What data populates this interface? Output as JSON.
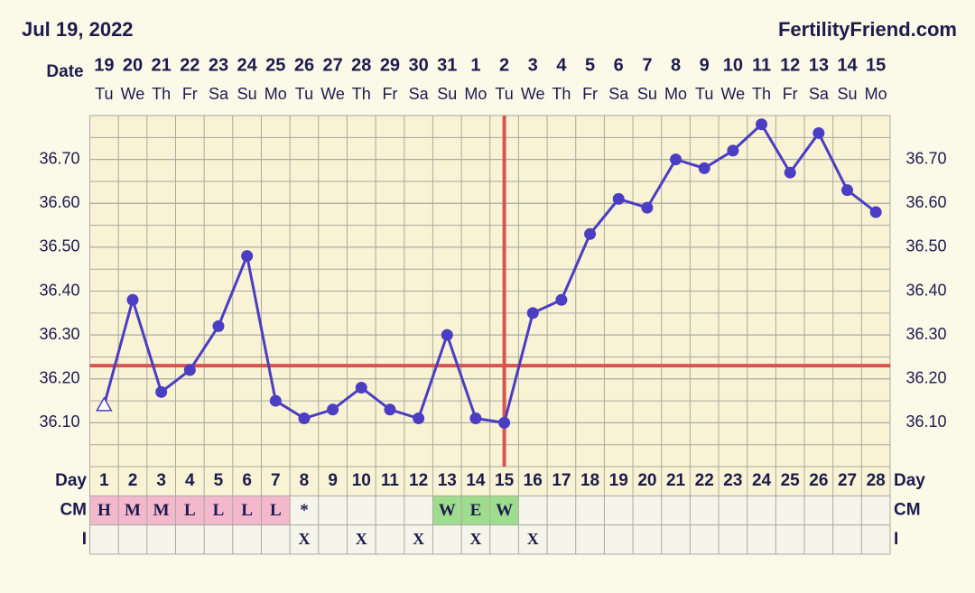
{
  "header": {
    "date": "Jul 19, 2022",
    "site": "FertilityFriend.com"
  },
  "chart_data": {
    "type": "line",
    "date_label": "Date",
    "categories": [
      "19",
      "20",
      "21",
      "22",
      "23",
      "24",
      "25",
      "26",
      "27",
      "28",
      "29",
      "30",
      "31",
      "1",
      "2",
      "3",
      "4",
      "5",
      "6",
      "7",
      "8",
      "9",
      "10",
      "11",
      "12",
      "13",
      "14",
      "15"
    ],
    "weekdays": [
      "Tu",
      "We",
      "Th",
      "Fr",
      "Sa",
      "Su",
      "Mo",
      "Tu",
      "We",
      "Th",
      "Fr",
      "Sa",
      "Su",
      "Mo",
      "Tu",
      "We",
      "Th",
      "Fr",
      "Sa",
      "Su",
      "Mo",
      "Tu",
      "We",
      "Th",
      "Fr",
      "Sa",
      "Su",
      "Mo"
    ],
    "series": [
      {
        "color": "#4b3dc4",
        "first_marker": "triangle",
        "values": [
          36.14,
          36.38,
          36.17,
          36.22,
          36.32,
          36.48,
          36.15,
          36.11,
          36.13,
          36.18,
          36.13,
          36.11,
          36.3,
          36.11,
          36.1,
          36.35,
          36.38,
          36.53,
          36.61,
          36.59,
          36.7,
          36.68,
          36.72,
          36.78,
          36.67,
          36.76,
          36.63,
          36.58
        ]
      }
    ],
    "ylim": [
      36.0,
      36.8
    ],
    "yticks": [
      {
        "value": 36.1,
        "label": "36.10"
      },
      {
        "value": 36.2,
        "label": "36.20"
      },
      {
        "value": 36.3,
        "label": "36.30"
      },
      {
        "value": 36.4,
        "label": "36.40"
      },
      {
        "value": 36.5,
        "label": "36.50"
      },
      {
        "value": 36.6,
        "label": "36.60"
      },
      {
        "value": 36.7,
        "label": "36.70"
      }
    ],
    "grid": true,
    "coverline": 36.23,
    "coverline_color": "#d9534f",
    "ovulation_day": 15
  },
  "table": {
    "day_label": "Day",
    "cm_label": "CM",
    "i_label": "I",
    "days": [
      1,
      2,
      3,
      4,
      5,
      6,
      7,
      8,
      9,
      10,
      11,
      12,
      13,
      14,
      15,
      16,
      17,
      18,
      19,
      20,
      21,
      22,
      23,
      24,
      25,
      26,
      27,
      28
    ],
    "cm": [
      {
        "label": "H",
        "color": "#f4b8cd"
      },
      {
        "label": "M",
        "color": "#f4b8cd"
      },
      {
        "label": "M",
        "color": "#f4b8cd"
      },
      {
        "label": "L",
        "color": "#f4b8cd"
      },
      {
        "label": "L",
        "color": "#f4b8cd"
      },
      {
        "label": "L",
        "color": "#f4b8cd"
      },
      {
        "label": "L",
        "color": "#f4b8cd"
      },
      {
        "label": "*"
      },
      null,
      null,
      null,
      null,
      {
        "label": "W",
        "color": "#9fdd8e"
      },
      {
        "label": "E",
        "color": "#9fdd8e"
      },
      {
        "label": "W",
        "color": "#9fdd8e"
      },
      null,
      null,
      null,
      null,
      null,
      null,
      null,
      null,
      null,
      null,
      null,
      null,
      null
    ],
    "intercourse": [
      null,
      null,
      null,
      null,
      null,
      null,
      null,
      "X",
      null,
      "X",
      null,
      "X",
      null,
      "X",
      null,
      "X",
      null,
      null,
      null,
      null,
      null,
      null,
      null,
      null,
      null,
      null,
      null,
      null
    ]
  }
}
